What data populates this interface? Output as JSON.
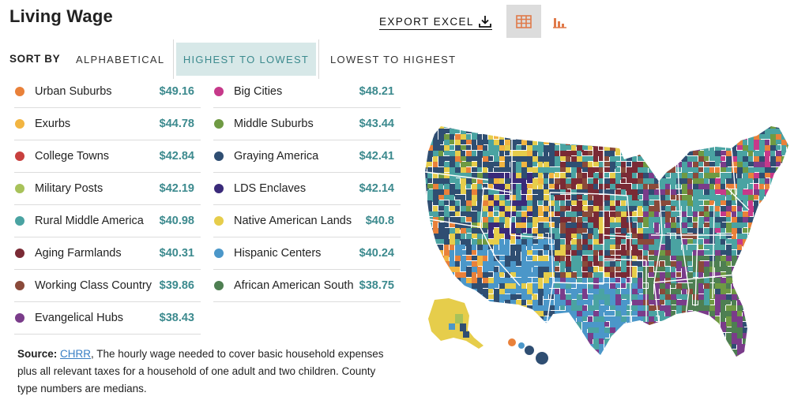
{
  "title": "Living Wage",
  "export_label": "EXPORT EXCEL",
  "icons": {
    "export": "download-icon",
    "table_view": "table-icon",
    "chart_view": "bar-chart-icon"
  },
  "sort": {
    "label": "SORT BY",
    "options": [
      "ALPHABETICAL",
      "HIGHEST TO LOWEST",
      "LOWEST TO HIGHEST"
    ],
    "selected": "HIGHEST TO LOWEST"
  },
  "colors": {
    "accent": "#3c8a8e",
    "accent_bg": "#d7e8e8"
  },
  "chart_data": {
    "type": "table",
    "series": [
      {
        "name": "Urban Suburbs",
        "value": "$49.16",
        "color": "#e9813a"
      },
      {
        "name": "Big Cities",
        "value": "$48.21",
        "color": "#c6398a"
      },
      {
        "name": "Exurbs",
        "value": "$44.78",
        "color": "#f2b541"
      },
      {
        "name": "Middle Suburbs",
        "value": "$43.44",
        "color": "#6f9a43"
      },
      {
        "name": "College Towns",
        "value": "$42.84",
        "color": "#c8403e"
      },
      {
        "name": "Graying America",
        "value": "$42.41",
        "color": "#2f4e72"
      },
      {
        "name": "Military Posts",
        "value": "$42.19",
        "color": "#a8c25a"
      },
      {
        "name": "LDS Enclaves",
        "value": "$42.14",
        "color": "#3a2a7a"
      },
      {
        "name": "Rural Middle America",
        "value": "$40.98",
        "color": "#4aa3a2"
      },
      {
        "name": "Native American Lands",
        "value": "$40.8",
        "color": "#e6cd4b"
      },
      {
        "name": "Aging Farmlands",
        "value": "$40.31",
        "color": "#7a2a35"
      },
      {
        "name": "Hispanic Centers",
        "value": "$40.24",
        "color": "#4b97c9"
      },
      {
        "name": "Working Class Country",
        "value": "$39.86",
        "color": "#8a4a3a"
      },
      {
        "name": "African American South",
        "value": "$38.75",
        "color": "#4e7f52"
      },
      {
        "name": "Evangelical Hubs",
        "value": "$38.43",
        "color": "#7a3c8a"
      }
    ]
  },
  "source": {
    "label": "Source:",
    "link": "CHRR",
    "text": ", The hourly wage needed to cover basic household expenses plus all relevant taxes for a household of one adult and two children. County type numbers are medians."
  }
}
